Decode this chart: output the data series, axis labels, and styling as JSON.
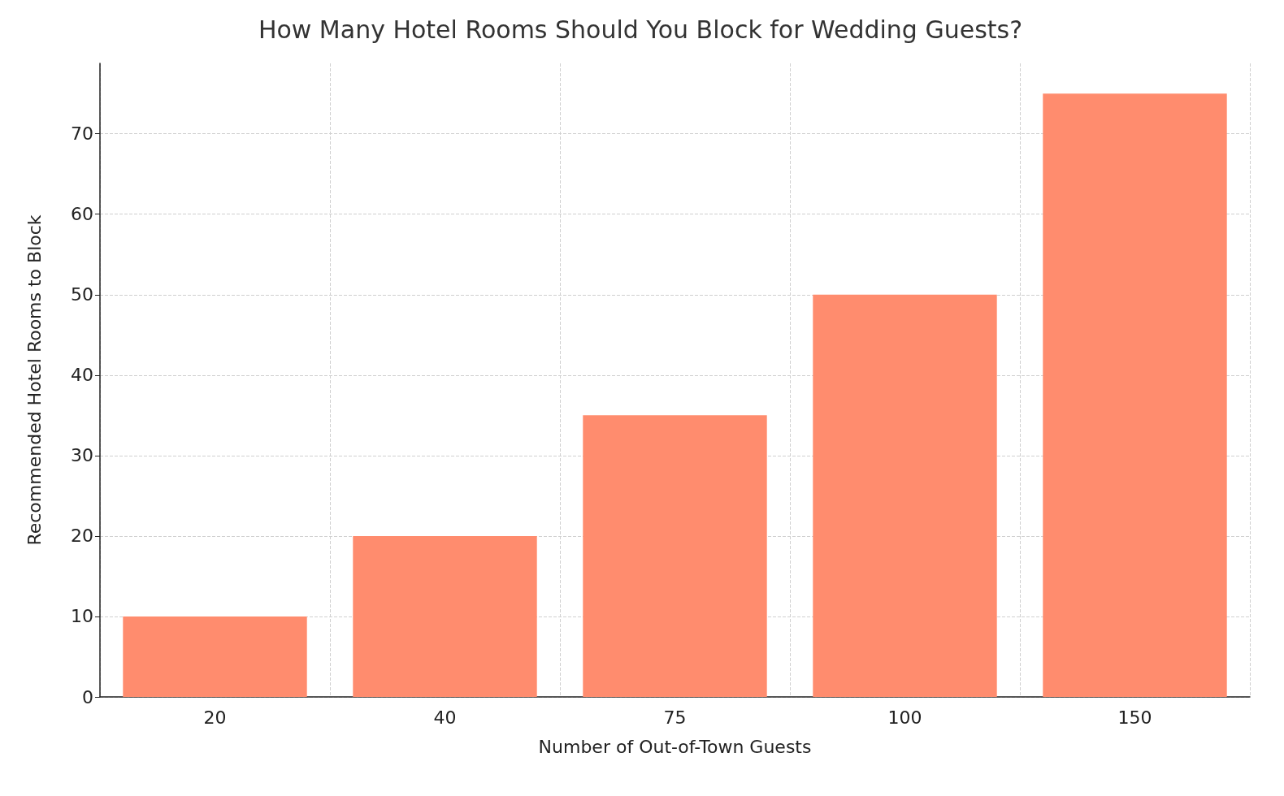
{
  "chart_data": {
    "type": "bar",
    "title": "How Many Hotel Rooms Should You Block for Wedding Guests?",
    "xlabel": "Number of Out-of-Town Guests",
    "ylabel": "Recommended Hotel Rooms to Block",
    "categories": [
      "20",
      "40",
      "75",
      "100",
      "150"
    ],
    "values": [
      10,
      20,
      35,
      50,
      75
    ],
    "color": "#ff8c6e",
    "ylim": [
      0,
      78.75
    ],
    "yticks": [
      0,
      10,
      20,
      30,
      40,
      50,
      60,
      70
    ],
    "grid": true
  }
}
